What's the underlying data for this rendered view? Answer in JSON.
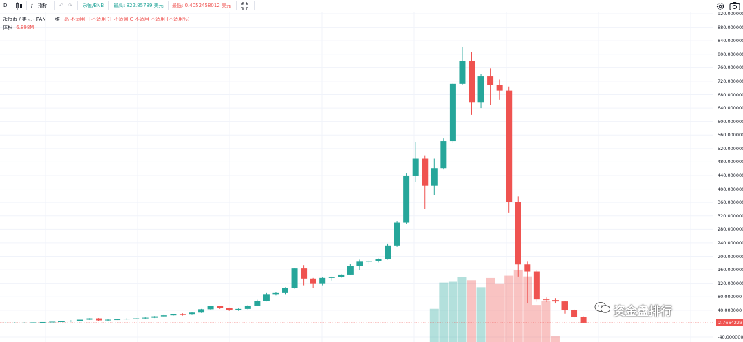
{
  "toolbar": {
    "interval": "D",
    "indicators_label": "指标",
    "symbol_label": "永恒/BNB",
    "high_label": "最高: 822.85789 美元",
    "low_label": "最低: 0.4052458012 美元"
  },
  "legend": {
    "title": "永恒币 / 美元 - PAN",
    "period": "一维",
    "ohlc": "高 不适用  H 不适用  升 不适用  C 不适用  不适用  (不适用%)",
    "volume_label": "体积",
    "volume_value": "6.898M"
  },
  "price_axis": {
    "labels": [
      "920.000000",
      "880.000000",
      "840.000000",
      "800.000000",
      "760.000000",
      "720.000000",
      "680.000000",
      "640.000000",
      "600.000000",
      "560.000000",
      "520.000000",
      "480.000000",
      "440.000000",
      "400.000000",
      "360.000000",
      "320.000000",
      "280.000000",
      "240.000000",
      "200.000000",
      "160.000000",
      "120.000000",
      "80.000000",
      "40.000000",
      "-40.000000"
    ],
    "last_price": "2.7664223"
  },
  "watermark": "资金盘排行",
  "colors": {
    "up": "#26a69a",
    "down": "#ef5350"
  },
  "chart_data": {
    "type": "candlestick",
    "ylim": [
      -40,
      920
    ],
    "candles": [
      {
        "o": 3,
        "h": 4,
        "l": 2,
        "c": 3
      },
      {
        "o": 3,
        "h": 4,
        "l": 2,
        "c": 3
      },
      {
        "o": 3,
        "h": 4,
        "l": 2,
        "c": 3
      },
      {
        "o": 3,
        "h": 4,
        "l": 2,
        "c": 4
      },
      {
        "o": 4,
        "h": 5,
        "l": 3,
        "c": 5
      },
      {
        "o": 5,
        "h": 6,
        "l": 4,
        "c": 6
      },
      {
        "o": 6,
        "h": 8,
        "l": 5,
        "c": 7
      },
      {
        "o": 7,
        "h": 10,
        "l": 6,
        "c": 9
      },
      {
        "o": 9,
        "h": 12,
        "l": 8,
        "c": 12
      },
      {
        "o": 12,
        "h": 17,
        "l": 11,
        "c": 16
      },
      {
        "o": 16,
        "h": 17,
        "l": 9,
        "c": 10
      },
      {
        "o": 10,
        "h": 13,
        "l": 9,
        "c": 12
      },
      {
        "o": 12,
        "h": 14,
        "l": 11,
        "c": 13
      },
      {
        "o": 13,
        "h": 16,
        "l": 12,
        "c": 15
      },
      {
        "o": 15,
        "h": 17,
        "l": 14,
        "c": 16
      },
      {
        "o": 16,
        "h": 19,
        "l": 15,
        "c": 18
      },
      {
        "o": 18,
        "h": 23,
        "l": 17,
        "c": 22
      },
      {
        "o": 22,
        "h": 26,
        "l": 21,
        "c": 25
      },
      {
        "o": 25,
        "h": 29,
        "l": 24,
        "c": 28
      },
      {
        "o": 28,
        "h": 31,
        "l": 24,
        "c": 27
      },
      {
        "o": 27,
        "h": 34,
        "l": 26,
        "c": 33
      },
      {
        "o": 33,
        "h": 44,
        "l": 32,
        "c": 43
      },
      {
        "o": 43,
        "h": 54,
        "l": 41,
        "c": 52
      },
      {
        "o": 52,
        "h": 54,
        "l": 44,
        "c": 46
      },
      {
        "o": 46,
        "h": 48,
        "l": 38,
        "c": 40
      },
      {
        "o": 40,
        "h": 46,
        "l": 38,
        "c": 44
      },
      {
        "o": 44,
        "h": 56,
        "l": 42,
        "c": 54
      },
      {
        "o": 54,
        "h": 71,
        "l": 52,
        "c": 68
      },
      {
        "o": 68,
        "h": 91,
        "l": 66,
        "c": 88
      },
      {
        "o": 88,
        "h": 94,
        "l": 84,
        "c": 91
      },
      {
        "o": 91,
        "h": 108,
        "l": 88,
        "c": 106
      },
      {
        "o": 106,
        "h": 165,
        "l": 104,
        "c": 164
      },
      {
        "o": 164,
        "h": 174,
        "l": 114,
        "c": 134
      },
      {
        "o": 134,
        "h": 136,
        "l": 106,
        "c": 120
      },
      {
        "o": 120,
        "h": 138,
        "l": 114,
        "c": 136
      },
      {
        "o": 136,
        "h": 140,
        "l": 128,
        "c": 138
      },
      {
        "o": 138,
        "h": 148,
        "l": 136,
        "c": 146
      },
      {
        "o": 146,
        "h": 178,
        "l": 144,
        "c": 172
      },
      {
        "o": 172,
        "h": 190,
        "l": 160,
        "c": 184
      },
      {
        "o": 184,
        "h": 188,
        "l": 178,
        "c": 186
      },
      {
        "o": 186,
        "h": 194,
        "l": 182,
        "c": 192
      },
      {
        "o": 192,
        "h": 238,
        "l": 190,
        "c": 232
      },
      {
        "o": 232,
        "h": 305,
        "l": 228,
        "c": 300
      },
      {
        "o": 300,
        "h": 446,
        "l": 296,
        "c": 438
      },
      {
        "o": 438,
        "h": 540,
        "l": 420,
        "c": 490
      },
      {
        "o": 490,
        "h": 500,
        "l": 340,
        "c": 410
      },
      {
        "o": 410,
        "h": 490,
        "l": 382,
        "c": 462
      },
      {
        "o": 462,
        "h": 550,
        "l": 458,
        "c": 542
      },
      {
        "o": 542,
        "h": 715,
        "l": 536,
        "c": 712
      },
      {
        "o": 712,
        "h": 822,
        "l": 708,
        "c": 780
      },
      {
        "o": 780,
        "h": 806,
        "l": 620,
        "c": 658
      },
      {
        "o": 658,
        "h": 742,
        "l": 640,
        "c": 734
      },
      {
        "o": 734,
        "h": 758,
        "l": 650,
        "c": 708
      },
      {
        "o": 708,
        "h": 725,
        "l": 665,
        "c": 692
      },
      {
        "o": 692,
        "h": 704,
        "l": 330,
        "c": 362
      },
      {
        "o": 362,
        "h": 378,
        "l": 140,
        "c": 176
      },
      {
        "o": 176,
        "h": 184,
        "l": 60,
        "c": 155
      },
      {
        "o": 155,
        "h": 160,
        "l": 65,
        "c": 72
      },
      {
        "o": 72,
        "h": 78,
        "l": 64,
        "c": 70
      },
      {
        "o": 70,
        "h": 76,
        "l": 60,
        "c": 66
      },
      {
        "o": 66,
        "h": 68,
        "l": 30,
        "c": 40
      },
      {
        "o": 40,
        "h": 44,
        "l": 16,
        "c": 20
      },
      {
        "o": 20,
        "h": 22,
        "l": 2,
        "c": 3
      }
    ],
    "volume_start_index": 46,
    "volumes": [
      0.44,
      0.78,
      0.79,
      0.85,
      0.81,
      0.72,
      0.84,
      0.77,
      0.87,
      0.94,
      0.86,
      0.49,
      0.54,
      0.08
    ]
  }
}
